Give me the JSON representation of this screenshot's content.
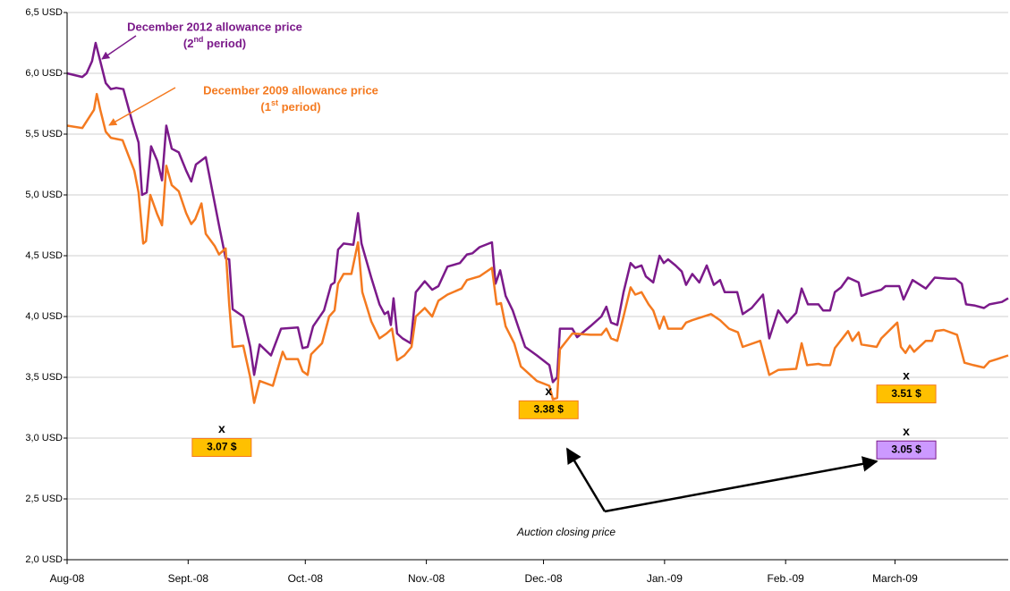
{
  "chart_data": {
    "type": "line",
    "xlim": [
      0,
      241
    ],
    "xticks": [
      {
        "value": 0,
        "label": "Aug-08"
      },
      {
        "value": 31,
        "label": "Sept.-08"
      },
      {
        "value": 61,
        "label": "Oct.-08"
      },
      {
        "value": 92,
        "label": "Nov.-08"
      },
      {
        "value": 122,
        "label": "Dec.-08"
      },
      {
        "value": 153,
        "label": "Jan.-09"
      },
      {
        "value": 184,
        "label": "Feb.-09"
      },
      {
        "value": 212,
        "label": "March-09"
      }
    ],
    "ylim": [
      2.0,
      6.5
    ],
    "yticks": [
      {
        "value": 2.0,
        "label": "2,0 USD"
      },
      {
        "value": 2.5,
        "label": "2,5 USD"
      },
      {
        "value": 3.0,
        "label": "3,0 USD"
      },
      {
        "value": 3.5,
        "label": "3,5 USD"
      },
      {
        "value": 4.0,
        "label": "4,0 USD"
      },
      {
        "value": 4.5,
        "label": "4,5 USD"
      },
      {
        "value": 5.0,
        "label": "5,0 USD"
      },
      {
        "value": 5.5,
        "label": "5,5 USD"
      },
      {
        "value": 6.0,
        "label": "6,0 USD"
      },
      {
        "value": 6.5,
        "label": "6,5 USD"
      }
    ],
    "grid": true,
    "series": [
      {
        "name": [
          "December 2012 allowance price",
          "(2",
          "nd",
          " period)"
        ],
        "color": "#7b1a8a",
        "x": [
          0,
          3.9,
          5.0,
          6.4,
          7.3,
          8.5,
          9.9,
          11.2,
          12.6,
          14.4,
          16.7,
          18.3,
          19.2,
          20.4,
          21.5,
          23.1,
          24.3,
          25.4,
          26.8,
          28.6,
          30.5,
          31.8,
          33.0,
          35.5,
          37.1,
          38.9,
          40.6,
          41.5,
          42.4,
          45.1,
          46.9,
          47.9,
          49.3,
          52.2,
          54.8,
          59.1,
          60.3,
          61.6,
          63.0,
          65.8,
          67.6,
          68.5,
          69.4,
          70.8,
          73.3,
          74.5,
          75.4,
          77.9,
          80.0,
          81.3,
          82.2,
          82.9,
          83.6,
          84.5,
          85.9,
          88.0,
          89.3,
          91.6,
          93.5,
          95.1,
          97.4,
          100.6,
          102.4,
          103.8,
          105.6,
          108.8,
          109.7,
          110.9,
          112.3,
          114.1,
          115.7,
          117.3,
          120.3,
          123.5,
          124.4,
          125.5,
          126.2,
          129.4,
          130.6,
          134.0,
          136.8,
          138.1,
          139.3,
          140.9,
          142.5,
          144.3,
          145.5,
          147.1,
          148.2,
          150.1,
          151.7,
          152.8,
          153.9,
          155.8,
          157.4,
          158.5,
          160.1,
          161.9,
          163.8,
          165.6,
          167.2,
          168.4,
          171.6,
          173.0,
          175.3,
          178.2,
          179.8,
          182.1,
          184.4,
          186.7,
          188.1,
          189.7,
          192.4,
          193.6,
          195.4,
          196.6,
          198.2,
          200.0,
          202.7,
          203.4,
          206.2,
          208.5,
          209.6,
          213.1,
          214.2,
          216.5,
          219.9,
          222.2,
          225.7,
          227.5,
          229.1,
          230.2,
          232.5,
          234.8,
          236.2,
          239.4,
          241.0
        ],
        "values": [
          6.0,
          5.97,
          6.0,
          6.1,
          6.25,
          6.1,
          5.92,
          5.87,
          5.88,
          5.87,
          5.6,
          5.43,
          5.0,
          5.02,
          5.4,
          5.28,
          5.12,
          5.57,
          5.38,
          5.35,
          5.2,
          5.11,
          5.25,
          5.31,
          5.05,
          4.75,
          4.48,
          4.47,
          4.06,
          4.0,
          3.75,
          3.52,
          3.77,
          3.68,
          3.9,
          3.91,
          3.74,
          3.75,
          3.92,
          4.05,
          4.26,
          4.28,
          4.55,
          4.6,
          4.59,
          4.85,
          4.6,
          4.32,
          4.1,
          4.02,
          4.04,
          3.93,
          4.15,
          3.86,
          3.82,
          3.78,
          4.2,
          4.29,
          4.22,
          4.25,
          4.41,
          4.44,
          4.51,
          4.52,
          4.57,
          4.61,
          4.27,
          4.38,
          4.17,
          4.05,
          3.9,
          3.75,
          3.68,
          3.6,
          3.46,
          3.5,
          3.9,
          3.9,
          3.83,
          3.92,
          4.0,
          4.08,
          3.95,
          3.93,
          4.2,
          4.44,
          4.4,
          4.42,
          4.33,
          4.28,
          4.5,
          4.44,
          4.47,
          4.42,
          4.37,
          4.26,
          4.35,
          4.28,
          4.42,
          4.26,
          4.3,
          4.2,
          4.2,
          4.02,
          4.07,
          4.18,
          3.82,
          4.05,
          3.95,
          4.03,
          4.23,
          4.1,
          4.1,
          4.05,
          4.05,
          4.2,
          4.24,
          4.32,
          4.28,
          4.17,
          4.2,
          4.22,
          4.25,
          4.25,
          4.14,
          4.3,
          4.23,
          4.32,
          4.31,
          4.31,
          4.27,
          4.1,
          4.09,
          4.07,
          4.1,
          4.12,
          4.15
        ]
      },
      {
        "name": [
          "December 2009 allowance price",
          "(1",
          "st",
          " period)"
        ],
        "color": "#f47a20",
        "x": [
          0,
          3.9,
          5.5,
          6.9,
          7.6,
          8.5,
          9.9,
          11.2,
          12.6,
          14.2,
          17.2,
          18.3,
          19.5,
          20.2,
          21.3,
          23.1,
          24.3,
          25.4,
          26.8,
          28.6,
          30.5,
          31.8,
          32.8,
          34.4,
          35.5,
          37.8,
          38.9,
          40.6,
          41.5,
          42.4,
          45.1,
          46.9,
          47.9,
          49.3,
          52.7,
          55.2,
          56.1,
          59.1,
          60.3,
          61.6,
          62.5,
          65.3,
          67.1,
          68.5,
          69.4,
          70.8,
          72.8,
          74.5,
          75.6,
          77.9,
          80.0,
          81.8,
          83.2,
          84.5,
          86.4,
          88.2,
          89.3,
          91.6,
          93.5,
          95.1,
          97.4,
          101.0,
          102.4,
          105.6,
          108.8,
          110.0,
          111.1,
          112.3,
          114.5,
          116.2,
          120.3,
          123.5,
          124.4,
          125.5,
          126.2,
          129.4,
          134.0,
          136.8,
          138.1,
          139.3,
          140.9,
          142.5,
          144.3,
          145.5,
          147.1,
          148.9,
          150.1,
          151.7,
          152.8,
          153.9,
          157.4,
          158.5,
          160.1,
          164.9,
          167.2,
          169.5,
          171.8,
          173.0,
          177.5,
          179.8,
          182.1,
          186.7,
          188.1,
          189.5,
          192.4,
          193.6,
          195.4,
          196.6,
          200.0,
          201.1,
          202.7,
          203.4,
          207.3,
          208.5,
          212.6,
          213.5,
          214.7,
          215.8,
          216.9,
          219.9,
          221.5,
          222.4,
          224.5,
          227.9,
          229.8,
          232.1,
          234.8,
          236.2,
          238.2,
          241.0
        ],
        "values": [
          5.57,
          5.55,
          5.63,
          5.7,
          5.83,
          5.7,
          5.52,
          5.47,
          5.46,
          5.45,
          5.2,
          5.02,
          4.6,
          4.62,
          5.0,
          4.84,
          4.75,
          5.24,
          5.08,
          5.03,
          4.85,
          4.76,
          4.8,
          4.93,
          4.68,
          4.58,
          4.51,
          4.56,
          4.1,
          3.75,
          3.76,
          3.5,
          3.29,
          3.47,
          3.43,
          3.71,
          3.65,
          3.65,
          3.55,
          3.52,
          3.69,
          3.78,
          4.0,
          4.05,
          4.27,
          4.35,
          4.35,
          4.61,
          4.2,
          3.96,
          3.82,
          3.86,
          3.9,
          3.64,
          3.68,
          3.75,
          4.0,
          4.07,
          4.0,
          4.13,
          4.18,
          4.23,
          4.3,
          4.33,
          4.4,
          4.1,
          4.11,
          3.92,
          3.78,
          3.59,
          3.47,
          3.43,
          3.32,
          3.33,
          3.73,
          3.86,
          3.85,
          3.85,
          3.9,
          3.82,
          3.8,
          4.0,
          4.24,
          4.18,
          4.2,
          4.1,
          4.05,
          3.9,
          4.0,
          3.9,
          3.9,
          3.95,
          3.97,
          4.02,
          3.97,
          3.9,
          3.87,
          3.75,
          3.8,
          3.52,
          3.56,
          3.57,
          3.78,
          3.6,
          3.61,
          3.6,
          3.6,
          3.74,
          3.88,
          3.8,
          3.87,
          3.77,
          3.75,
          3.82,
          3.95,
          3.75,
          3.7,
          3.76,
          3.71,
          3.8,
          3.8,
          3.88,
          3.89,
          3.85,
          3.62,
          3.6,
          3.58,
          3.63,
          3.65,
          3.68
        ]
      }
    ],
    "auctions": {
      "marker": "x",
      "x": [
        39.6,
        123.3,
        214.9,
        214.9
      ],
      "values": [
        3.07,
        3.38,
        3.51,
        3.05
      ],
      "value_labels": [
        "3.07 $",
        "3.38 $",
        "3.51 $",
        "3.05 $"
      ],
      "colors": [
        "#ffc000",
        "#ffc000",
        "#ffc000",
        "#cc99ff"
      ],
      "borders": [
        "#f47a20",
        "#f47a20",
        "#f47a20",
        "#7b1a8a"
      ]
    },
    "annotation": "Auction closing price"
  }
}
